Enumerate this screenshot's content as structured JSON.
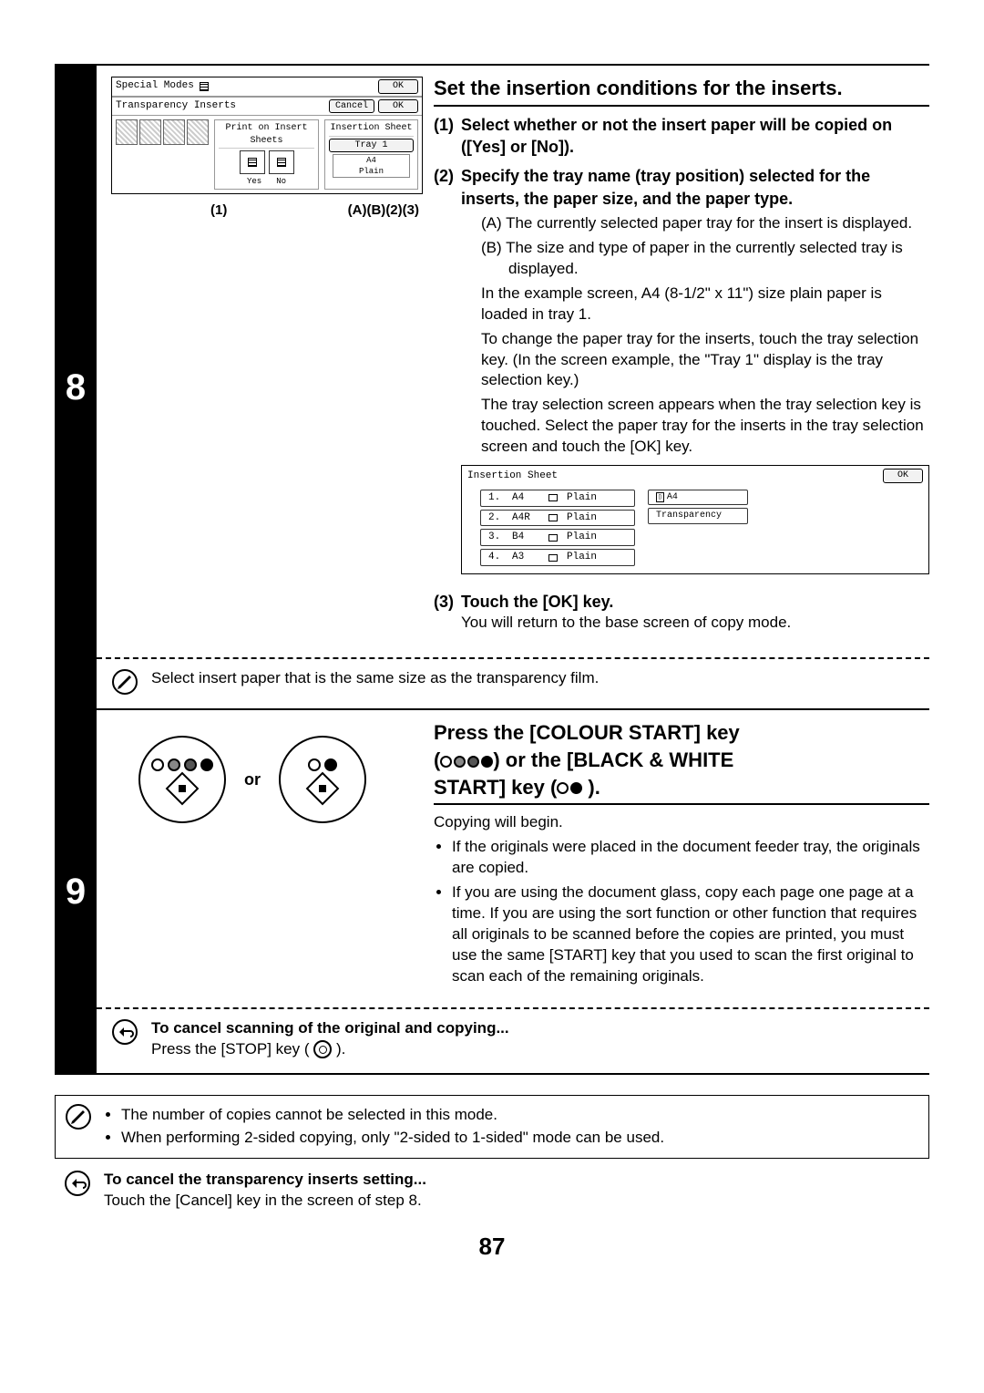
{
  "page_number": "87",
  "step8": {
    "num": "8",
    "heading": "Set the insertion conditions for the inserts.",
    "panel": {
      "title": "Special Modes",
      "ok_top": "OK",
      "sub_title": "Transparency Inserts",
      "cancel": "Cancel",
      "ok_inner": "OK",
      "print_label": "Print on Insert Sheets",
      "yes": "Yes",
      "no": "No",
      "ins_sheet": "Insertion Sheet",
      "tray": "Tray 1",
      "size": "A4",
      "type": "Plain"
    },
    "labels": {
      "l1": "(1)",
      "la": "(A)",
      "lb": "(B)",
      "l2": "(2)",
      "l3": "(3)"
    },
    "sub1_title": "Select whether or not the insert paper will be copied on ([Yes] or [No]).",
    "sub2_title": "Specify the tray name (tray position) selected for the inserts, the paper size, and the paper type.",
    "sub2_a": "(A) The currently selected paper tray for the insert is displayed.",
    "sub2_b": "(B) The size and type of paper in the currently selected tray is displayed.",
    "sub2_p1": "In the example screen, A4 (8-1/2\" x 11\") size plain paper is loaded in tray 1.",
    "sub2_p2": "To change the paper tray for the inserts, touch the tray selection key. (In the screen example, the \"Tray 1\" display is the tray selection key.)",
    "sub2_p3": "The tray selection screen appears when the tray selection key is touched. Select the paper tray for the inserts in the tray selection screen and touch the [OK] key.",
    "tray_box": {
      "title": "Insertion Sheet",
      "ok": "OK",
      "rows": [
        {
          "n": "1.",
          "sz": "A4",
          "tp": "Plain"
        },
        {
          "n": "2.",
          "sz": "A4R",
          "tp": "Plain"
        },
        {
          "n": "3.",
          "sz": "B4",
          "tp": "Plain"
        },
        {
          "n": "4.",
          "sz": "A3",
          "tp": "Plain"
        }
      ],
      "side1": "A4",
      "side2": "Transparency"
    },
    "sub3_title": "Touch the [OK] key.",
    "sub3_text": "You will return to the base screen of copy mode.",
    "note": "Select insert paper that is the same size as the transparency film."
  },
  "step9": {
    "num": "9",
    "or": "or",
    "heading_l1": "Press the [COLOUR START] key",
    "heading_l2a": "(",
    "heading_l2b": ") or the [BLACK & WHITE",
    "heading_l3a": "START] key (",
    "heading_l3b": ").",
    "p1": "Copying will begin.",
    "b1": "If the originals were placed in the document feeder tray, the originals are copied.",
    "b2": "If you are using the document glass, copy each page one page at a time. If you are using the sort function or other function that requires all originals to be scanned before the copies are printed, you must use the same [START] key that you used to scan the first original to scan each of the remaining originals.",
    "cancel_title": "To cancel scanning of the original and copying...",
    "cancel_text_a": "Press the [STOP] key ( ",
    "cancel_text_b": " )."
  },
  "footer": {
    "n1": "The number of copies cannot be selected in this mode.",
    "n2": "When performing 2-sided copying, only \"2-sided to 1-sided\" mode can be used.",
    "c_title": "To cancel the transparency inserts setting...",
    "c_text": "Touch the [Cancel] key in the screen of step 8."
  }
}
